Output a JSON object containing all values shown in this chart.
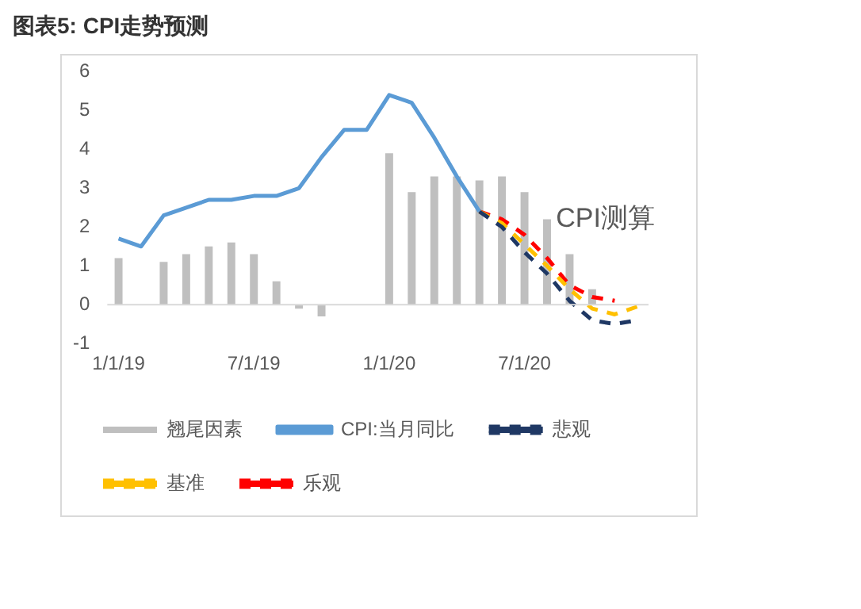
{
  "chart_data": {
    "type": "bar",
    "title": "图表5: CPI走势预测",
    "categories": [
      "1/1/19",
      null,
      null,
      null,
      null,
      null,
      "7/1/19",
      null,
      null,
      null,
      null,
      null,
      "1/1/20",
      null,
      null,
      null,
      null,
      null,
      "7/1/20",
      null,
      null,
      null,
      null,
      null
    ],
    "series": [
      {
        "name": "翘尾因素",
        "color": "#bfbfbf",
        "values": [
          1.2,
          null,
          1.1,
          1.3,
          1.5,
          1.6,
          1.3,
          0.6,
          -0.1,
          -0.3,
          null,
          null,
          3.9,
          2.9,
          3.3,
          3.3,
          3.2,
          3.3,
          2.9,
          2.2,
          1.3,
          0.4,
          null,
          null
        ]
      },
      {
        "name": "CPI:当月同比",
        "type": "line",
        "color": "#5b9bd5",
        "line_style": "solid",
        "values": [
          1.7,
          1.5,
          2.3,
          2.5,
          2.7,
          2.7,
          2.8,
          2.8,
          3.0,
          3.8,
          4.5,
          4.5,
          5.4,
          5.2,
          4.3,
          3.3,
          2.4,
          null,
          null,
          null,
          null,
          null,
          null,
          null
        ]
      },
      {
        "name": "悲观",
        "type": "line",
        "color": "#1f3864",
        "line_style": "dashed",
        "values": [
          null,
          null,
          null,
          null,
          null,
          null,
          null,
          null,
          null,
          null,
          null,
          null,
          null,
          null,
          null,
          null,
          2.4,
          2.0,
          1.35,
          0.8,
          0.1,
          -0.4,
          -0.5,
          -0.4
        ]
      },
      {
        "name": "基准",
        "type": "line",
        "color": "#ffc000",
        "line_style": "dashed",
        "values": [
          null,
          null,
          null,
          null,
          null,
          null,
          null,
          null,
          null,
          null,
          null,
          null,
          null,
          null,
          null,
          null,
          2.4,
          2.1,
          1.55,
          1.0,
          0.4,
          -0.1,
          -0.25,
          -0.05
        ]
      },
      {
        "name": "乐观",
        "type": "line",
        "color": "#ff0000",
        "line_style": "dashed",
        "values": [
          null,
          null,
          null,
          null,
          null,
          null,
          null,
          null,
          null,
          null,
          null,
          null,
          null,
          null,
          null,
          null,
          2.4,
          2.2,
          1.8,
          1.2,
          0.5,
          0.2,
          0.1,
          null
        ]
      }
    ],
    "ylim": [
      -1,
      6
    ],
    "yticks": [
      -1,
      0,
      1,
      2,
      3,
      4,
      5,
      6
    ],
    "grid": false,
    "legend": "bottom",
    "marker": "none",
    "annotations": [
      "CPI测算"
    ]
  }
}
